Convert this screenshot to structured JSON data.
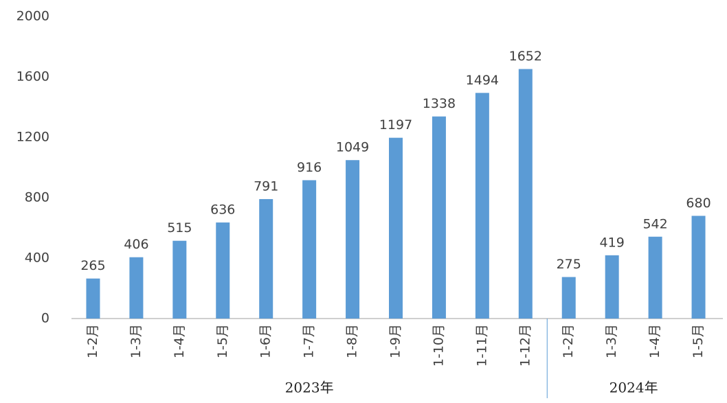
{
  "chart_data": {
    "type": "bar",
    "color": "#5b9bd5",
    "ylim": [
      0,
      2000
    ],
    "yticks": [
      0,
      400,
      800,
      1200,
      1600,
      2000
    ],
    "grid": false,
    "groups": [
      {
        "label": "2023年",
        "categories": [
          "1-2月",
          "1-3月",
          "1-4月",
          "1-5月",
          "1-6月",
          "1-7月",
          "1-8月",
          "1-9月",
          "1-10月",
          "1-11月",
          "1-12月"
        ],
        "values": [
          265,
          406,
          515,
          636,
          791,
          916,
          1049,
          1197,
          1338,
          1494,
          1652
        ]
      },
      {
        "label": "2024年",
        "categories": [
          "1-2月",
          "1-3月",
          "1-4月",
          "1-5月"
        ],
        "values": [
          275,
          419,
          542,
          680
        ]
      }
    ]
  }
}
